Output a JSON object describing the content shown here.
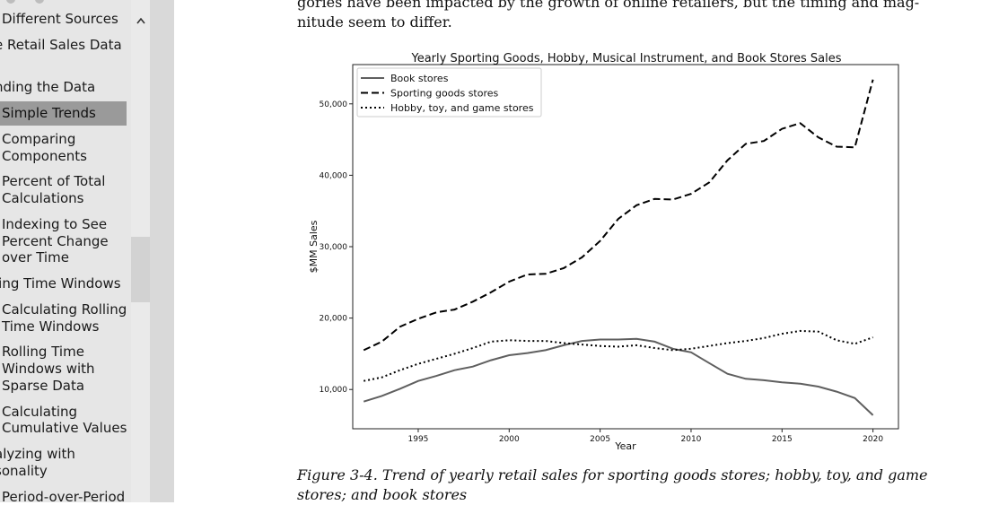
{
  "sidebar": {
    "items": [
      {
        "label": "Different Sources",
        "active": false
      },
      {
        "label": "e Retail Sales Data",
        "active": false
      },
      {
        "label": "nding the Data",
        "active": false
      },
      {
        "label": "Simple Trends",
        "active": true
      },
      {
        "label": "Comparing",
        "active": false
      },
      {
        "label": "Components",
        "active": false
      },
      {
        "label": "Percent of Total",
        "active": false
      },
      {
        "label": "Calculations",
        "active": false
      },
      {
        "label": "Indexing to See",
        "active": false
      },
      {
        "label": "Percent Change",
        "active": false
      },
      {
        "label": "over Time",
        "active": false
      },
      {
        "label": "ling Time Windows",
        "active": false
      },
      {
        "label": "Calculating Rolling",
        "active": false
      },
      {
        "label": "Time Windows",
        "active": false
      },
      {
        "label": "Rolling Time",
        "active": false
      },
      {
        "label": "Windows with",
        "active": false
      },
      {
        "label": "Sparse Data",
        "active": false
      },
      {
        "label": "Calculating",
        "active": false
      },
      {
        "label": "Cumulative Values",
        "active": false
      },
      {
        "label": "alyzing with",
        "active": false
      },
      {
        "label": "sonality",
        "active": false
      },
      {
        "label": "Period-over-Period",
        "active": false
      }
    ],
    "scroll_up_icon": "chevron-up-icon"
  },
  "content": {
    "paragraph_line1": "gories have been impacted by the growth of online retailers, but the timing and mag-",
    "paragraph_line2": "nitude seem to differ.",
    "caption_line1": "Figure 3-4. Trend of yearly retail sales for sporting goods stores; hobby, toy, and game",
    "caption_line2": "stores; and book stores"
  },
  "chart_data": {
    "type": "line",
    "title": "Yearly Sporting Goods, Hobby, Musical Instrument, and Book Stores Sales",
    "xlabel": "Year",
    "ylabel": "$MM Sales",
    "xlim": [
      1991.4,
      2021.4
    ],
    "ylim": [
      4500,
      55500
    ],
    "xticks": [
      1995,
      2000,
      2005,
      2010,
      2015,
      2020
    ],
    "yticks": [
      10000,
      20000,
      30000,
      40000,
      50000
    ],
    "ytick_labels": [
      "10,000",
      "20,000",
      "30,000",
      "40,000",
      "50,000"
    ],
    "legend_position": "top-left",
    "x": [
      1992,
      1993,
      1994,
      1995,
      1996,
      1997,
      1998,
      1999,
      2000,
      2001,
      2002,
      2003,
      2004,
      2005,
      2006,
      2007,
      2008,
      2009,
      2010,
      2011,
      2012,
      2013,
      2014,
      2015,
      2016,
      2017,
      2018,
      2019,
      2020
    ],
    "series": [
      {
        "name": "Book stores",
        "style": "solid",
        "color": "#5f5f5f",
        "values": [
          8300,
          9100,
          10100,
          11200,
          11900,
          12700,
          13200,
          14100,
          14800,
          15100,
          15500,
          16200,
          16800,
          17000,
          17000,
          17100,
          16700,
          15700,
          15200,
          13700,
          12200,
          11500,
          11300,
          11000,
          10800,
          10400,
          9700,
          8800,
          6400
        ]
      },
      {
        "name": "Sporting goods stores",
        "style": "dashed",
        "color": "#000000",
        "values": [
          15500,
          16700,
          18800,
          19900,
          20800,
          21200,
          22300,
          23600,
          25100,
          26100,
          26200,
          27000,
          28500,
          30800,
          33900,
          35800,
          36700,
          36600,
          37400,
          39000,
          42100,
          44400,
          44800,
          46500,
          47300,
          45300,
          44000,
          43900,
          53400
        ]
      },
      {
        "name": "Hobby, toy, and game stores",
        "style": "dotted",
        "color": "#000000",
        "values": [
          11200,
          11700,
          12700,
          13600,
          14300,
          15000,
          15800,
          16700,
          16900,
          16800,
          16800,
          16500,
          16300,
          16100,
          16000,
          16200,
          15800,
          15500,
          15700,
          16100,
          16500,
          16800,
          17200,
          17800,
          18200,
          18100,
          16900,
          16400,
          17300
        ]
      }
    ]
  }
}
